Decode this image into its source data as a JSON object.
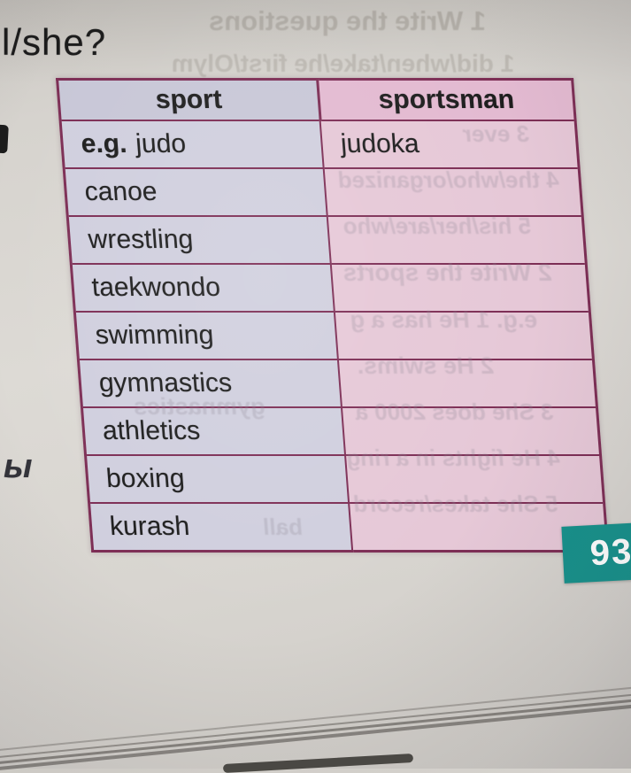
{
  "page": {
    "heading_fragment": "l/she?",
    "margin_letter": "ы",
    "page_number": "93"
  },
  "table": {
    "headers": {
      "sport": "sport",
      "sportsman": "sportsman"
    },
    "example_label": "e.g.",
    "rows": [
      {
        "sport": "judo",
        "sportsman": "judoka"
      },
      {
        "sport": "canoe",
        "sportsman": ""
      },
      {
        "sport": "wrestling",
        "sportsman": ""
      },
      {
        "sport": "taekwondo",
        "sportsman": ""
      },
      {
        "sport": "swimming",
        "sportsman": ""
      },
      {
        "sport": "gymnastics",
        "sportsman": ""
      },
      {
        "sport": "athletics",
        "sportsman": ""
      },
      {
        "sport": "boxing",
        "sportsman": ""
      },
      {
        "sport": "kurash",
        "sportsman": ""
      }
    ]
  },
  "ghost": {
    "fragments": [
      {
        "text": "1 Write the questions"
      },
      {
        "text": "1 did/when/take/he first/Olym"
      },
      {
        "text": "3 ever"
      },
      {
        "text": "4 the/who/organized"
      },
      {
        "text": "5 his/her/are/who"
      },
      {
        "text": "2 Write the sports"
      },
      {
        "text": "e.g. 1 He has a g"
      },
      {
        "text": "2 He swims."
      },
      {
        "text": "3 She does 2000 a"
      },
      {
        "text": "4 He fights in a ring"
      },
      {
        "text": "5 She takes/record"
      },
      {
        "text": "gymnastics"
      },
      {
        "text": "ball"
      }
    ]
  },
  "colors": {
    "col_sport_bg": "#d0cfde",
    "col_sportsman_bg": "#e6c8d7",
    "header_sport_bg": "#c8c7d7",
    "header_sportsman_bg": "#e3bad1",
    "border": "#7d2e55",
    "page_badge_bg": "#17918b",
    "page_badge_text": "#ffffff",
    "ghost_color": "#8b8492"
  }
}
